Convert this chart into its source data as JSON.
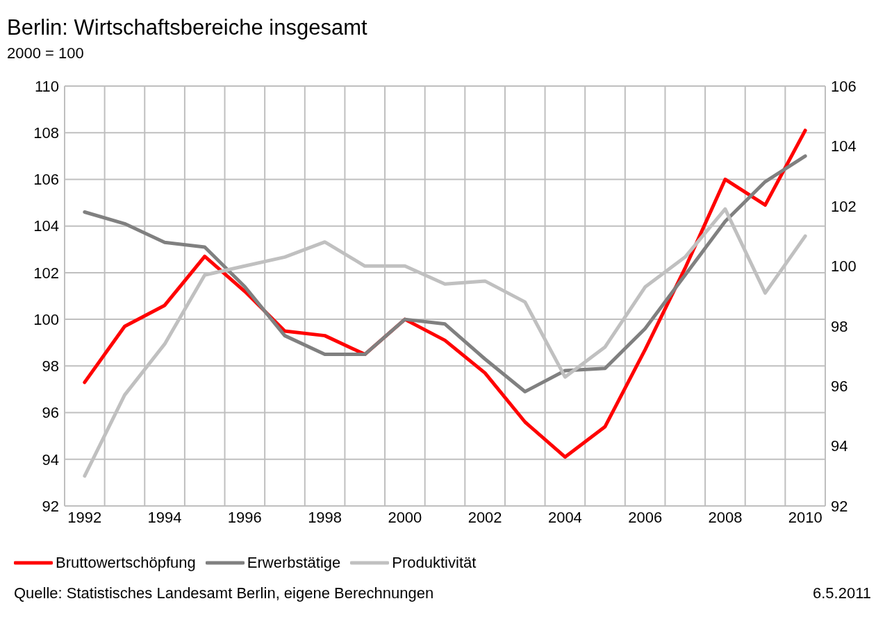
{
  "chart_data": {
    "type": "line",
    "title": "Berlin: Wirtschaftsbereiche insgesamt",
    "subtitle": "2000 = 100",
    "categories": [
      "1992",
      null,
      "1994",
      null,
      "1996",
      null,
      "1998",
      null,
      "2000",
      null,
      "2002",
      null,
      "2004",
      null,
      "2006",
      null,
      "2008",
      null,
      "2010"
    ],
    "series": [
      {
        "name": "Bruttowertschöpfung",
        "color": "#ff0000",
        "values": [
          97.3,
          99.7,
          100.6,
          102.7,
          101.2,
          99.5,
          99.3,
          98.5,
          100.0,
          99.1,
          97.7,
          95.6,
          94.1,
          95.4,
          98.7,
          102.2,
          106.0,
          104.9,
          108.1
        ]
      },
      {
        "name": "Erwerbstätige",
        "color": "#808080",
        "values": [
          104.6,
          104.1,
          103.3,
          103.1,
          101.4,
          99.3,
          98.5,
          98.5,
          100.0,
          99.8,
          98.3,
          96.9,
          97.8,
          97.9,
          99.6,
          101.9,
          104.2,
          105.9,
          107.0
        ]
      },
      {
        "name": "Produktivität",
        "color": "#c0c0c0",
        "axis": "y2",
        "values": [
          93.0,
          95.7,
          97.4,
          99.7,
          100.0,
          100.3,
          100.8,
          100.0,
          100.0,
          99.4,
          99.5,
          98.8,
          96.3,
          97.3,
          99.3,
          100.3,
          101.9,
          99.1,
          101.0
        ]
      }
    ],
    "ylim": [
      92,
      110
    ],
    "yticks": [
      92,
      94,
      96,
      98,
      100,
      102,
      104,
      106,
      108,
      110
    ],
    "y2lim": [
      92,
      106
    ],
    "y2ticks": [
      92,
      94,
      96,
      98,
      100,
      102,
      104,
      106
    ],
    "grid": true,
    "legend": "bottom",
    "annotations": [
      "Quelle: Statistisches Landesamt Berlin, eigene Berechnungen",
      "6.5.2011"
    ]
  }
}
